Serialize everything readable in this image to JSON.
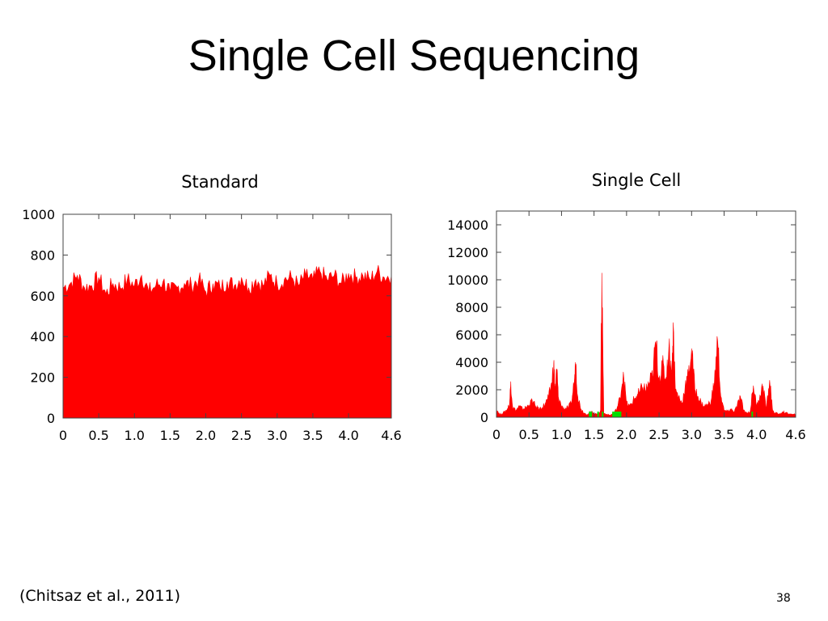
{
  "slide": {
    "title": "Single Cell Sequencing",
    "citation": "(Chitsaz et al., 2011)",
    "page_number": "38"
  },
  "colors": {
    "coverage": "#ff0000",
    "highlight": "#00dd00",
    "frame": "#444444"
  },
  "chart_data": [
    {
      "type": "area",
      "title": "Standard",
      "xlabel": "",
      "ylabel": "",
      "xlim": [
        0,
        4.6
      ],
      "ylim": [
        0,
        1000
      ],
      "x_ticks": [
        0,
        0.5,
        1.0,
        1.5,
        2.0,
        2.5,
        3.0,
        3.5,
        4.0,
        4.6
      ],
      "x_tick_labels": [
        "0",
        "0.5",
        "1.0",
        "1.5",
        "2.0",
        "2.5",
        "3.0",
        "3.5",
        "4.0",
        "4.6"
      ],
      "y_ticks": [
        0,
        200,
        400,
        600,
        800,
        1000
      ],
      "y_tick_labels": [
        "0",
        "200",
        "400",
        "600",
        "800",
        "1000"
      ],
      "grid": false,
      "x": [
        0,
        0.1,
        0.2,
        0.3,
        0.4,
        0.5,
        0.6,
        0.7,
        0.8,
        0.9,
        1.0,
        1.1,
        1.2,
        1.3,
        1.4,
        1.5,
        1.6,
        1.7,
        1.8,
        1.9,
        2.0,
        2.1,
        2.2,
        2.3,
        2.4,
        2.5,
        2.6,
        2.7,
        2.8,
        2.9,
        3.0,
        3.1,
        3.2,
        3.3,
        3.4,
        3.5,
        3.6,
        3.7,
        3.8,
        3.9,
        4.0,
        4.1,
        4.2,
        4.3,
        4.4,
        4.5,
        4.6
      ],
      "series": [
        {
          "values": [
            640,
            660,
            700,
            640,
            650,
            690,
            610,
            660,
            640,
            680,
            650,
            700,
            620,
            650,
            670,
            620,
            640,
            660,
            650,
            680,
            620,
            660,
            640,
            670,
            650,
            690,
            640,
            680,
            650,
            700,
            660,
            680,
            690,
            650,
            700,
            680,
            720,
            680,
            700,
            660,
            710,
            690,
            700,
            680,
            720,
            690,
            700
          ],
          "color": "#ff0000"
        }
      ]
    },
    {
      "type": "area",
      "title": "Single Cell",
      "xlabel": "",
      "ylabel": "",
      "xlim": [
        0,
        4.6
      ],
      "ylim": [
        0,
        15000
      ],
      "x_ticks": [
        0,
        0.5,
        1.0,
        1.5,
        2.0,
        2.5,
        3.0,
        3.5,
        4.0,
        4.6
      ],
      "x_tick_labels": [
        "0",
        "0.5",
        "1.0",
        "1.5",
        "2.0",
        "2.5",
        "3.0",
        "3.5",
        "4.0",
        "4.6"
      ],
      "y_ticks": [
        0,
        2000,
        4000,
        6000,
        8000,
        10000,
        12000,
        14000
      ],
      "y_tick_labels": [
        "0",
        "2000",
        "4000",
        "6000",
        "8000",
        "10000",
        "12000",
        "14000"
      ],
      "grid": false,
      "x": [
        0,
        0.05,
        0.1,
        0.15,
        0.2,
        0.22,
        0.25,
        0.3,
        0.35,
        0.4,
        0.45,
        0.5,
        0.55,
        0.6,
        0.65,
        0.7,
        0.75,
        0.8,
        0.85,
        0.88,
        0.9,
        0.93,
        0.95,
        1.0,
        1.05,
        1.1,
        1.15,
        1.2,
        1.22,
        1.25,
        1.3,
        1.35,
        1.4,
        1.45,
        1.5,
        1.55,
        1.6,
        1.62,
        1.65,
        1.7,
        1.75,
        1.8,
        1.85,
        1.9,
        1.95,
        2.0,
        2.05,
        2.1,
        2.15,
        2.2,
        2.25,
        2.3,
        2.35,
        2.4,
        2.45,
        2.5,
        2.55,
        2.6,
        2.65,
        2.7,
        2.72,
        2.75,
        2.8,
        2.85,
        2.9,
        2.95,
        3.0,
        3.05,
        3.1,
        3.15,
        3.2,
        3.25,
        3.3,
        3.35,
        3.4,
        3.45,
        3.5,
        3.55,
        3.6,
        3.65,
        3.7,
        3.75,
        3.8,
        3.85,
        3.9,
        3.95,
        4.0,
        4.05,
        4.1,
        4.15,
        4.2,
        4.25,
        4.3,
        4.35,
        4.4,
        4.45,
        4.5,
        4.55,
        4.6
      ],
      "series": [
        {
          "values": [
            600,
            200,
            300,
            500,
            900,
            2600,
            700,
            500,
            800,
            600,
            700,
            900,
            1200,
            800,
            600,
            700,
            1000,
            1400,
            2500,
            3900,
            2000,
            3500,
            1500,
            800,
            600,
            700,
            1000,
            2800,
            3900,
            1500,
            600,
            300,
            200,
            400,
            300,
            200,
            500,
            10500,
            300,
            200,
            150,
            300,
            600,
            1400,
            3300,
            1000,
            800,
            1200,
            1500,
            1800,
            2200,
            2000,
            2500,
            3000,
            5500,
            2800,
            3800,
            2700,
            5000,
            3500,
            6600,
            2000,
            1500,
            1000,
            2200,
            3000,
            5000,
            2000,
            1500,
            1000,
            800,
            900,
            1200,
            2500,
            5600,
            1500,
            500,
            400,
            600,
            400,
            800,
            1500,
            500,
            300,
            400,
            2300,
            800,
            1600,
            2300,
            600,
            2700,
            400,
            300,
            200,
            400,
            300,
            250,
            200,
            200
          ],
          "color": "#ff0000"
        }
      ],
      "highlights": [
        {
          "x_start": 1.42,
          "x_end": 1.47
        },
        {
          "x_start": 1.55,
          "x_end": 1.57
        },
        {
          "x_start": 1.62,
          "x_end": 1.64
        },
        {
          "x_start": 1.78,
          "x_end": 1.92
        },
        {
          "x_start": 3.92,
          "x_end": 3.94
        }
      ]
    }
  ]
}
